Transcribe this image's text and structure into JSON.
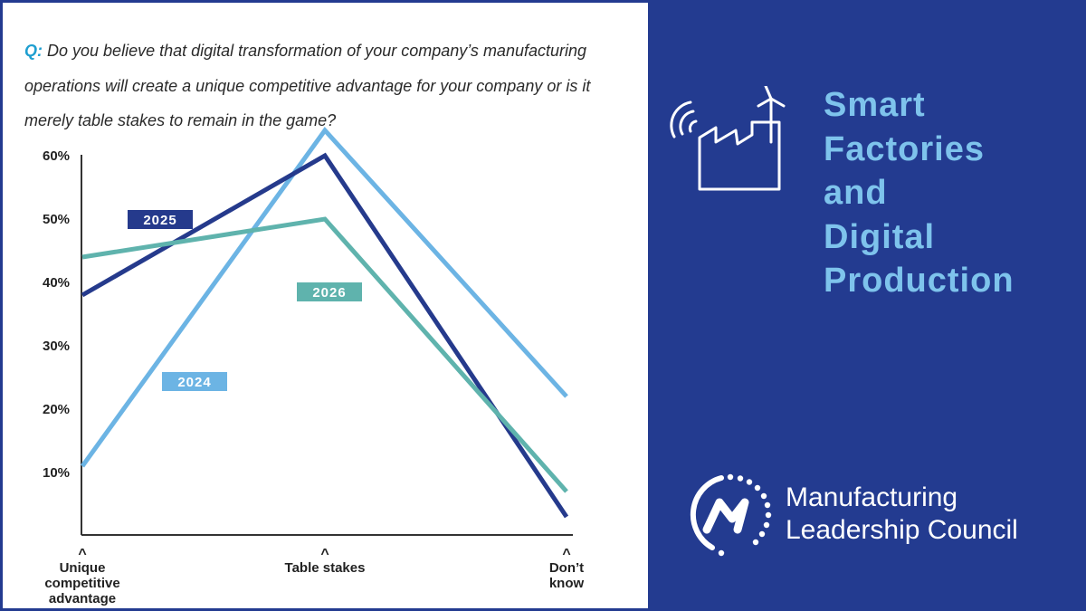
{
  "question": {
    "prefix": "Q:",
    "text": "Do you believe that digital transformation of your company’s manufacturing operations will create a unique competitive advantage for your company or is it merely table stakes to remain in the game?"
  },
  "chart_data": {
    "type": "line",
    "title": "Q: Do you believe that digital transformation of your company’s manufacturing operations will create a unique competitive advantage for your company or is it merely table stakes to remain in the game?",
    "categories": [
      "Unique competitive advantage",
      "Table stakes",
      "Don’t know"
    ],
    "category_label_lines": [
      [
        "Unique",
        "competitive",
        "advantage"
      ],
      [
        "Table stakes"
      ],
      [
        "Don’t",
        "know"
      ]
    ],
    "category_marker": "^",
    "series": [
      {
        "name": "2024",
        "values": [
          11,
          64,
          22
        ],
        "color": "#6cb4e4"
      },
      {
        "name": "2025",
        "values": [
          38,
          60,
          3
        ],
        "color": "#253a8c"
      },
      {
        "name": "2026",
        "values": [
          44,
          50,
          7
        ],
        "color": "#5fb3ad"
      }
    ],
    "yticks": [
      10,
      20,
      30,
      40,
      50,
      60
    ],
    "ytick_labels": [
      "10%",
      "20%",
      "30%",
      "40%",
      "50%",
      "60%"
    ],
    "ylim": [
      0,
      60
    ],
    "xlabel": "",
    "ylabel": "",
    "grid": false,
    "legend": "inline labels on lines"
  },
  "brand": {
    "title_lines": [
      "Smart",
      "Factories",
      "and",
      "Digital",
      "Production"
    ],
    "org_lines": [
      "Manufacturing",
      "Leadership Council"
    ],
    "colors": {
      "background": "#233b90",
      "title": "#7ec3ec",
      "org": "#ffffff"
    },
    "icons": [
      "factory-wind-turbine-icon",
      "mlc-logo-icon"
    ]
  }
}
